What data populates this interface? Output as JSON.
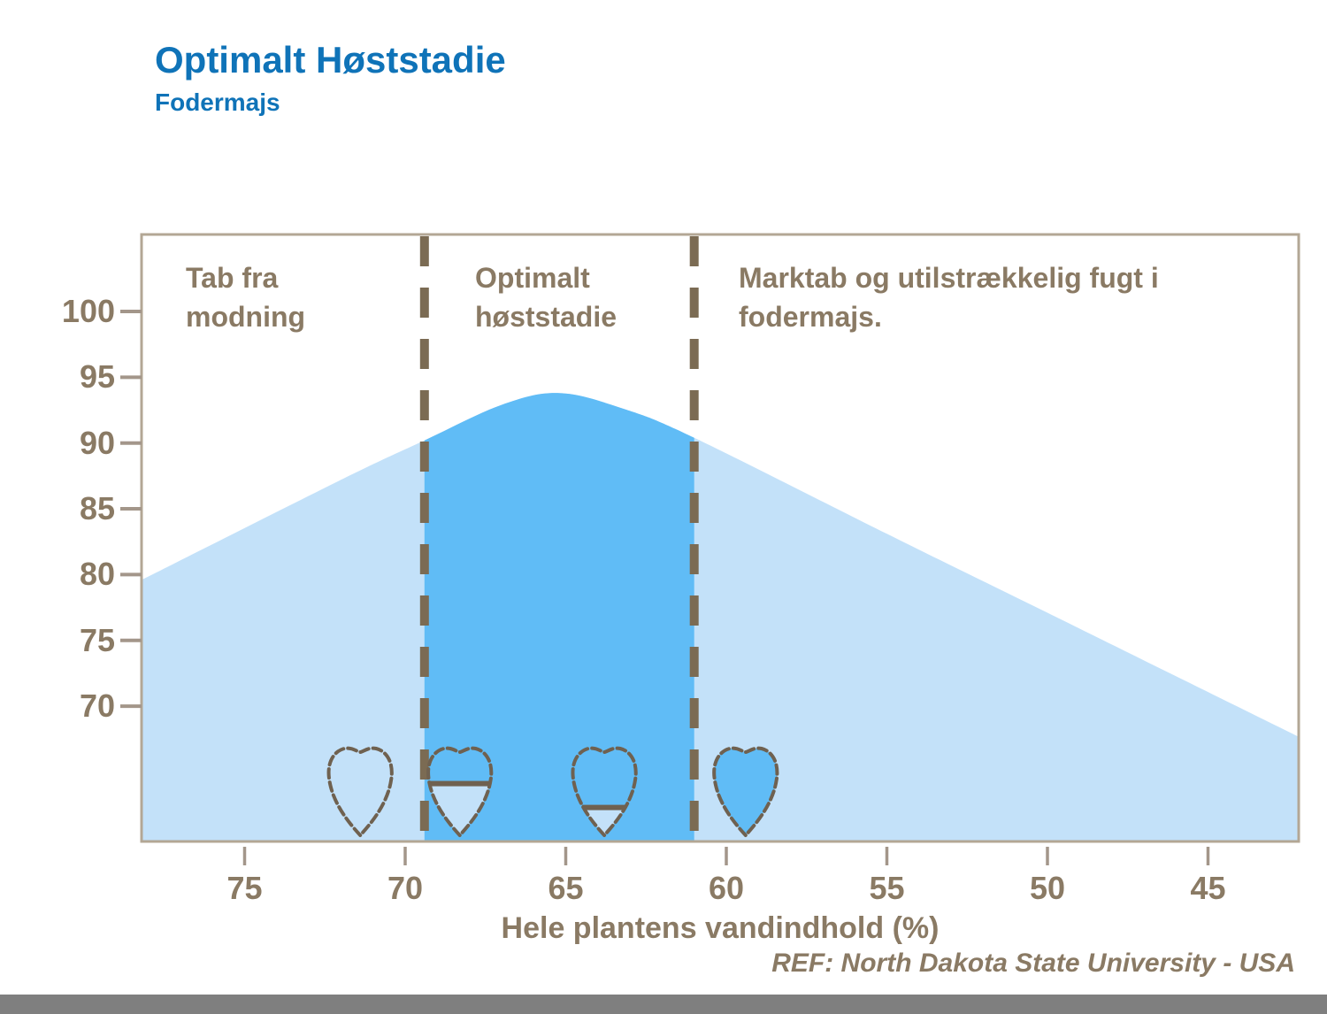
{
  "slide": {
    "title": "Optimalt Høststadie",
    "subtitle": "Fodermajs",
    "reference": "REF: North Dakota State University - USA"
  },
  "colors": {
    "title_blue": "#0f73b8",
    "label_brown": "#8a7a64",
    "dash_brown": "#7b6b53",
    "kernel_outline_brown": "#6f6150",
    "curve_light_blue": "#c3e1f9",
    "curve_dark_blue": "#60bcf6",
    "frame_taupe": "#b3a795",
    "tick_taupe": "#a3968a",
    "footer_gray": "#7f7f7f"
  },
  "chart_data": {
    "type": "area",
    "title": "",
    "xlabel": "Hele plantens vandindhold (%)",
    "ylabel": "",
    "x_axis_reversed": true,
    "x_ticks": [
      75,
      70,
      65,
      60,
      55,
      50,
      45
    ],
    "y_ticks": [
      100,
      95,
      90,
      85,
      80,
      75,
      70
    ],
    "xlim": [
      78.2,
      42.2
    ],
    "ylim": [
      59.7,
      105.9
    ],
    "grid": false,
    "curve": {
      "points": [
        [
          78.2,
          79.6
        ],
        [
          72,
          87.2
        ],
        [
          69.4,
          90.2
        ],
        [
          67,
          92.9
        ],
        [
          65.2,
          93.8
        ],
        [
          63.2,
          92.6
        ],
        [
          61,
          90.4
        ],
        [
          55,
          83.1
        ],
        [
          50,
          77.1
        ],
        [
          42.2,
          67.7
        ]
      ]
    },
    "optimal_band_x": [
      69.4,
      61.0
    ],
    "regions": [
      {
        "label": "Tab fra\nmodning",
        "range_x": [
          78.2,
          69.4
        ]
      },
      {
        "label": "Optimalt\nhøststadie",
        "range_x": [
          69.4,
          61.0
        ]
      },
      {
        "label": "Marktab og utilstrækkelig fugt i fodermajs.",
        "range_x": [
          61.0,
          42.2
        ]
      }
    ],
    "kernels": [
      {
        "moisture": 71.4,
        "milk_line": 0
      },
      {
        "moisture": 68.3,
        "milk_line": 0.45
      },
      {
        "moisture": 63.8,
        "milk_line": 0.7
      },
      {
        "moisture": 59.4,
        "milk_line": 1
      }
    ]
  }
}
